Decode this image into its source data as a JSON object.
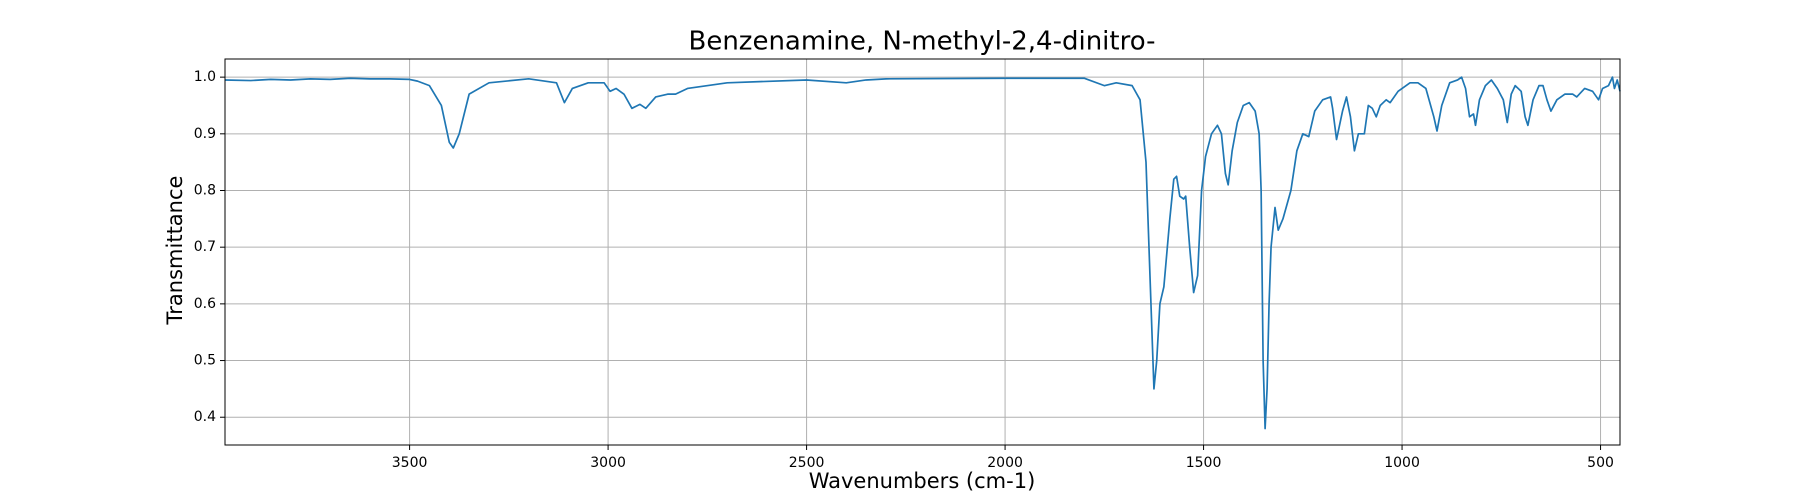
{
  "chart_data": {
    "type": "line",
    "title": "Benzenamine, N-methyl-2,4-dinitro-",
    "xlabel": "Wavenumbers (cm-1)",
    "ylabel": "Transmittance",
    "color": "#1f77b4",
    "grid": true,
    "xlim": [
      3965,
      451
    ],
    "ylim": [
      0.351,
      1.032
    ],
    "xticks": [
      3500,
      3000,
      2500,
      2000,
      1500,
      1000,
      500
    ],
    "yticks": [
      0.4,
      0.5,
      0.6,
      0.7,
      0.8,
      0.9,
      {
        "value": 1,
        "label": "1.0"
      }
    ],
    "x": [
      3965,
      3900,
      3850,
      3800,
      3750,
      3700,
      3650,
      3600,
      3550,
      3500,
      3480,
      3450,
      3420,
      3400,
      3390,
      3375,
      3350,
      3300,
      3200,
      3130,
      3110,
      3090,
      3050,
      3010,
      2995,
      2980,
      2960,
      2940,
      2920,
      2905,
      2880,
      2850,
      2830,
      2800,
      2700,
      2500,
      2400,
      2350,
      2300,
      2000,
      1800,
      1750,
      1720,
      1680,
      1660,
      1645,
      1635,
      1625,
      1618,
      1610,
      1600,
      1585,
      1575,
      1568,
      1560,
      1550,
      1545,
      1535,
      1525,
      1515,
      1505,
      1495,
      1480,
      1465,
      1455,
      1445,
      1438,
      1428,
      1415,
      1400,
      1385,
      1370,
      1360,
      1355,
      1350,
      1345,
      1340,
      1335,
      1330,
      1320,
      1312,
      1300,
      1280,
      1265,
      1250,
      1235,
      1220,
      1200,
      1180,
      1175,
      1165,
      1150,
      1140,
      1130,
      1120,
      1110,
      1095,
      1085,
      1075,
      1065,
      1055,
      1040,
      1030,
      1010,
      980,
      960,
      940,
      920,
      912,
      900,
      880,
      860,
      850,
      840,
      830,
      820,
      815,
      805,
      790,
      775,
      760,
      745,
      735,
      725,
      715,
      700,
      690,
      683,
      670,
      655,
      645,
      635,
      625,
      610,
      590,
      570,
      560,
      540,
      520,
      505,
      495,
      480,
      470,
      465,
      458,
      451
    ],
    "values": [
      0.995,
      0.994,
      0.996,
      0.995,
      0.997,
      0.996,
      0.998,
      0.997,
      0.997,
      0.996,
      0.993,
      0.985,
      0.95,
      0.885,
      0.875,
      0.9,
      0.97,
      0.99,
      0.997,
      0.99,
      0.955,
      0.98,
      0.99,
      0.99,
      0.975,
      0.98,
      0.97,
      0.945,
      0.952,
      0.945,
      0.965,
      0.97,
      0.97,
      0.98,
      0.99,
      0.995,
      0.99,
      0.995,
      0.997,
      0.998,
      0.998,
      0.985,
      0.99,
      0.985,
      0.96,
      0.85,
      0.65,
      0.45,
      0.5,
      0.6,
      0.63,
      0.75,
      0.82,
      0.825,
      0.79,
      0.785,
      0.79,
      0.7,
      0.62,
      0.65,
      0.8,
      0.86,
      0.9,
      0.915,
      0.9,
      0.83,
      0.81,
      0.87,
      0.92,
      0.95,
      0.955,
      0.94,
      0.9,
      0.8,
      0.5,
      0.38,
      0.45,
      0.6,
      0.7,
      0.77,
      0.73,
      0.75,
      0.8,
      0.87,
      0.9,
      0.895,
      0.94,
      0.96,
      0.965,
      0.945,
      0.89,
      0.94,
      0.965,
      0.93,
      0.87,
      0.9,
      0.9,
      0.95,
      0.945,
      0.93,
      0.95,
      0.96,
      0.955,
      0.975,
      0.99,
      0.99,
      0.98,
      0.93,
      0.905,
      0.95,
      0.99,
      0.995,
      1.0,
      0.98,
      0.93,
      0.935,
      0.915,
      0.96,
      0.985,
      0.995,
      0.98,
      0.96,
      0.92,
      0.97,
      0.985,
      0.975,
      0.93,
      0.915,
      0.96,
      0.985,
      0.985,
      0.96,
      0.94,
      0.96,
      0.97,
      0.97,
      0.965,
      0.98,
      0.975,
      0.96,
      0.98,
      0.985,
      1.0,
      0.98,
      0.995,
      0.975
    ]
  }
}
